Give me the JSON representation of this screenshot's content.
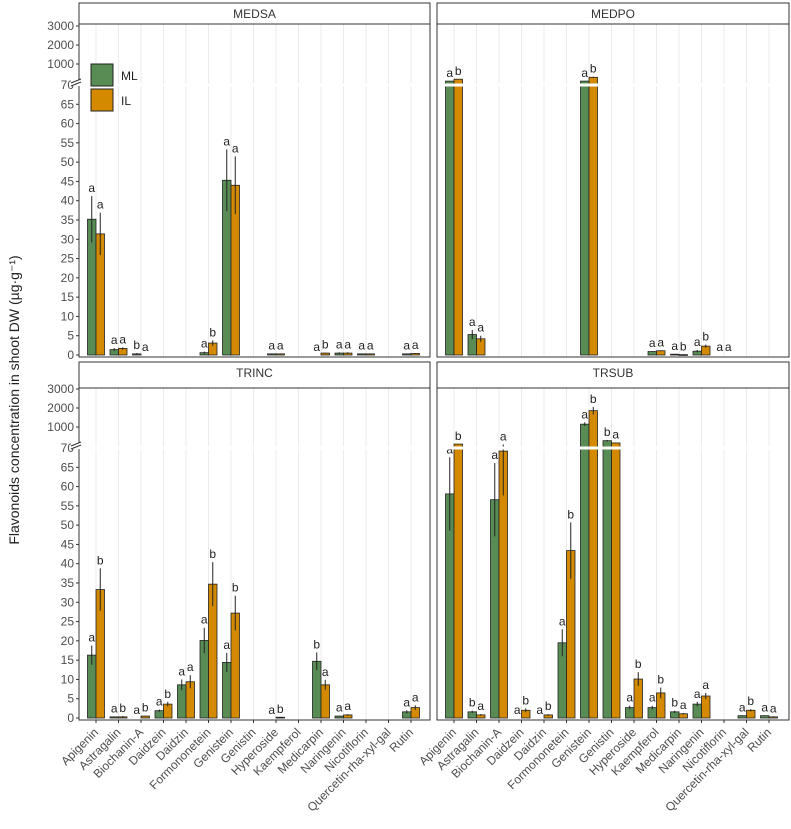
{
  "chart_data": {
    "type": "bar",
    "title": "",
    "ylabel": "Flavonoids concentration in shoot DW (µg·g⁻¹)",
    "xlabel": "",
    "y_axis": {
      "lower_ticks": [
        "0",
        "5",
        "10",
        "15",
        "20",
        "25",
        "30",
        "35",
        "40",
        "45",
        "50",
        "55",
        "60",
        "65",
        "70"
      ],
      "upper_ticks": [
        "1000",
        "2000",
        "3000"
      ],
      "break_at": 70,
      "lower_range": [
        0,
        70
      ],
      "upper_range": [
        1000,
        3000
      ]
    },
    "legend": {
      "placement": "top-left inside first panel",
      "entries": [
        "ML",
        "IL"
      ]
    },
    "colors": {
      "ML": "#588c54",
      "IL": "#d48a00"
    },
    "categories": [
      "Apigenin",
      "Astragalin",
      "Biochanin-A",
      "Daidzein",
      "Daidzin",
      "Formononetein",
      "Genistein",
      "Genistin",
      "Hyperoside",
      "Kaempferol",
      "Medicarpin",
      "Naringenin",
      "Nicotiflorin",
      "Quercetin-rha-xyl-gal",
      "Rutin"
    ],
    "panels": [
      {
        "name": "MEDSA",
        "series": [
          {
            "name": "ML",
            "values": [
              35.2,
              1.4,
              0.3,
              0,
              0,
              0.6,
              45.3,
              0,
              0.3,
              0,
              0,
              0.5,
              0.3,
              0,
              0.3
            ],
            "errors": [
              6,
              0.4,
              0.2,
              0,
              0,
              0.3,
              8,
              0,
              0.1,
              0,
              0,
              0.2,
              0.1,
              0,
              0.1
            ],
            "letters": [
              "a",
              "a",
              "b",
              null,
              null,
              "a",
              "a",
              null,
              "a",
              null,
              "a",
              "a",
              "a",
              null,
              "a"
            ]
          },
          {
            "name": "IL",
            "values": [
              31.4,
              1.7,
              0,
              0,
              0,
              3.1,
              44.0,
              0,
              0.3,
              0,
              0.5,
              0.5,
              0.3,
              0,
              0.4
            ],
            "errors": [
              5.5,
              0.3,
              0,
              0,
              0,
              0.7,
              7.5,
              0,
              0.1,
              0,
              0.1,
              0.2,
              0.1,
              0,
              0.1
            ],
            "letters": [
              "a",
              "a",
              "a",
              null,
              null,
              "b",
              "a",
              null,
              "a",
              null,
              "b",
              "a",
              "a",
              null,
              "a"
            ]
          }
        ]
      },
      {
        "name": "MEDPO",
        "series": [
          {
            "name": "ML",
            "values": [
              100,
              5.3,
              0,
              0,
              0,
              0,
              100,
              0,
              0,
              0.9,
              0.2,
              1.0,
              0,
              0,
              0
            ],
            "errors": [
              10,
              1.2,
              0,
              0,
              0,
              0,
              10,
              0,
              0,
              0.1,
              0.1,
              0.3,
              0,
              0,
              0
            ],
            "letters": [
              "a",
              "a",
              null,
              null,
              null,
              null,
              "a",
              null,
              null,
              "a",
              "a",
              "a",
              "a",
              null,
              null
            ]
          },
          {
            "name": "IL",
            "values": [
              200,
              4.2,
              0,
              0,
              0,
              0,
              300,
              0,
              0,
              1.1,
              0.1,
              2.3,
              0,
              0,
              0
            ],
            "errors": [
              10,
              0.8,
              0,
              0,
              0,
              0,
              30,
              0,
              0,
              0.1,
              0.05,
              0.4,
              0,
              0,
              0
            ],
            "letters": [
              "b",
              "a",
              null,
              null,
              null,
              null,
              "b",
              null,
              null,
              "a",
              "b",
              "b",
              "a",
              null,
              null
            ]
          }
        ]
      },
      {
        "name": "TRINC",
        "series": [
          {
            "name": "ML",
            "values": [
              16.3,
              0.3,
              0,
              1.9,
              8.6,
              20.1,
              14.4,
              0,
              0,
              0,
              14.7,
              0.5,
              0,
              0,
              1.6
            ],
            "errors": [
              2.5,
              0.1,
              0,
              0.3,
              1.4,
              3.3,
              2.5,
              0,
              0,
              0,
              2.3,
              0.1,
              0,
              0,
              0.4
            ],
            "letters": [
              "a",
              "a",
              "a",
              "a",
              "a",
              "a",
              "a",
              null,
              "a",
              null,
              "b",
              "a",
              null,
              null,
              "a"
            ]
          },
          {
            "name": "IL",
            "values": [
              33.3,
              0.3,
              0.5,
              3.6,
              9.4,
              34.7,
              27.2,
              0,
              0.2,
              0,
              8.6,
              0.8,
              0,
              0,
              2.7
            ],
            "errors": [
              5.5,
              0.2,
              0.1,
              0.6,
              1.7,
              5.7,
              4.5,
              0,
              0.1,
              0,
              1.3,
              0.2,
              0,
              0,
              0.6
            ],
            "letters": [
              "b",
              "b",
              "b",
              "b",
              "a",
              "b",
              "b",
              null,
              "b",
              null,
              "a",
              "a",
              null,
              null,
              "a"
            ]
          }
        ]
      },
      {
        "name": "TRSUB",
        "series": [
          {
            "name": "ML",
            "values": [
              58.1,
              1.6,
              56.6,
              0,
              0,
              19.5,
              1150,
              280,
              2.7,
              2.7,
              1.6,
              3.6,
              0,
              0.6,
              0.6
            ],
            "errors": [
              9.5,
              0.3,
              9.5,
              0,
              0,
              3.5,
              100,
              40,
              0.5,
              0.5,
              0.3,
              0.6,
              0,
              0.1,
              0.1
            ],
            "letters": [
              "a",
              "b",
              "a",
              "a",
              "a",
              "a",
              "a",
              "b",
              "a",
              "a",
              "b",
              "a",
              null,
              "a",
              "a"
            ]
          },
          {
            "name": "IL",
            "values": [
              100,
              0.8,
              69.2,
              2.0,
              0.8,
              43.4,
              1860,
              160,
              10.1,
              6.5,
              1.1,
              5.7,
              0,
              2.0,
              0.3
            ],
            "errors": [
              10,
              0.2,
              11.5,
              0.5,
              0.2,
              7.3,
              200,
              20,
              1.8,
              1.4,
              0.2,
              0.8,
              0,
              0.3,
              0.1
            ],
            "letters": [
              "b",
              "a",
              "a",
              "b",
              "b",
              "b",
              "b",
              "a",
              "b",
              "b",
              "a",
              "a",
              null,
              "b",
              "a"
            ]
          }
        ]
      }
    ]
  }
}
